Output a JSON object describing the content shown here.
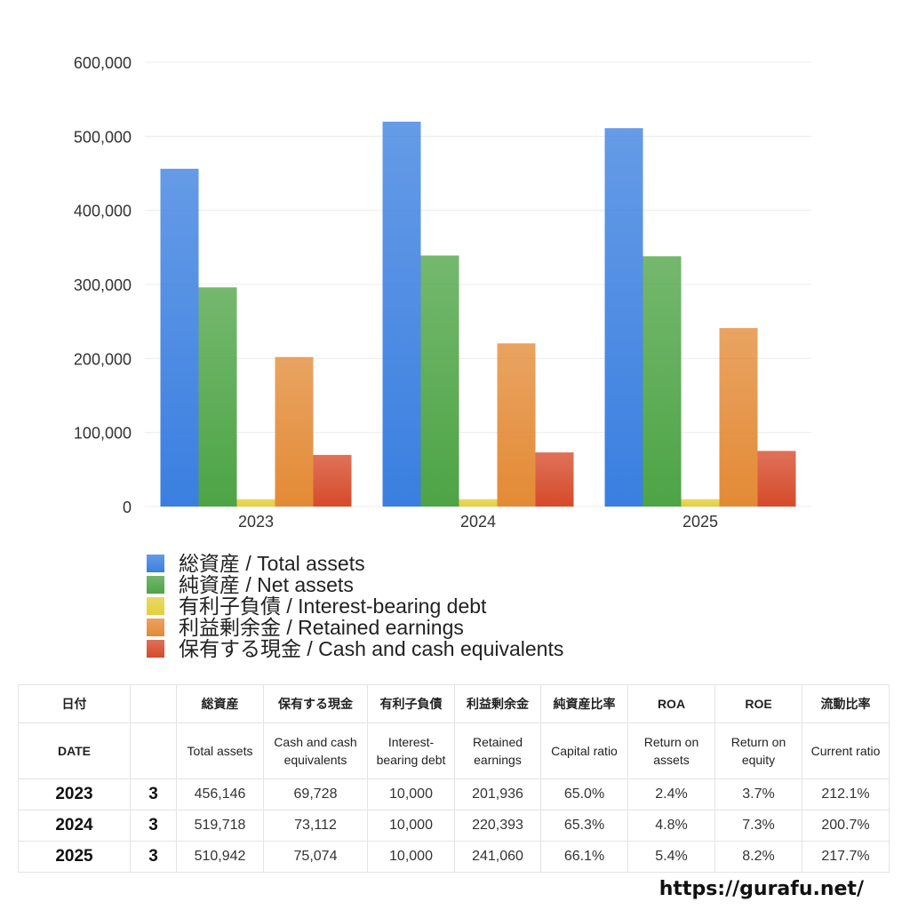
{
  "chart_data": {
    "type": "bar",
    "categories": [
      "2023",
      "2024",
      "2025"
    ],
    "series": [
      {
        "name": "総資産 / Total assets",
        "values": [
          456146,
          519718,
          510942
        ],
        "color": "#3a7fe0"
      },
      {
        "name": "純資産 / Net assets",
        "values": [
          296000,
          339000,
          338000
        ],
        "color": "#4da445"
      },
      {
        "name": "有利子負債 / Interest-bearing debt",
        "values": [
          10000,
          10000,
          10000
        ],
        "color": "#e3cf3c"
      },
      {
        "name": "利益剰余金 / Retained earnings",
        "values": [
          201936,
          220393,
          241060
        ],
        "color": "#e38a35"
      },
      {
        "name": "保有する現金 /  Cash and cash equivalents",
        "values": [
          69728,
          73112,
          75074
        ],
        "color": "#d64a2a"
      }
    ],
    "yticks": [
      "0",
      "100,000",
      "200,000",
      "300,000",
      "400,000",
      "500,000",
      "600,000"
    ],
    "ylim": [
      0,
      600000
    ],
    "grid": true,
    "legend": "bottom"
  },
  "table": {
    "header_ja": [
      "日付",
      "",
      "総資産",
      "保有する現金",
      "有利子負債",
      "利益剰余金",
      "純資産比率",
      "ROA",
      "ROE",
      "流動比率"
    ],
    "header_en": [
      "DATE",
      "",
      "Total assets",
      "Cash and cash equivalents",
      "Interest-bearing debt",
      "Retained earnings",
      "Capital ratio",
      "Return on assets",
      "Return on equity",
      "Current ratio"
    ],
    "rows": [
      [
        "2023",
        "3",
        "456,146",
        "69,728",
        "10,000",
        "201,936",
        "65.0%",
        "2.4%",
        "3.7%",
        "212.1%"
      ],
      [
        "2024",
        "3",
        "519,718",
        "73,112",
        "10,000",
        "220,393",
        "65.3%",
        "4.8%",
        "7.3%",
        "200.7%"
      ],
      [
        "2025",
        "3",
        "510,942",
        "75,074",
        "10,000",
        "241,060",
        "66.1%",
        "5.4%",
        "8.2%",
        "217.7%"
      ]
    ]
  },
  "footer": "https://gurafu.net/"
}
